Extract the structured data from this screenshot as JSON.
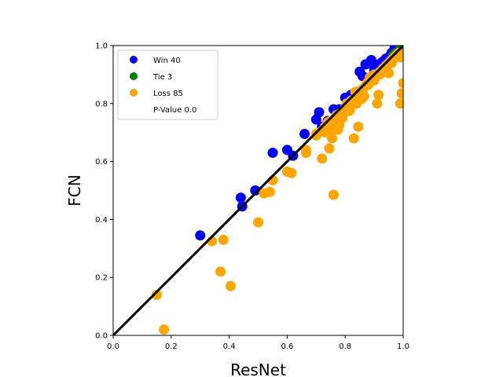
{
  "chart_data": {
    "type": "scatter",
    "xlabel": "ResNet",
    "ylabel": "FCN",
    "xlim": [
      0,
      1
    ],
    "ylim": [
      0,
      1
    ],
    "x_ticks": [
      "0.0",
      "0.2",
      "0.4",
      "0.6",
      "0.8",
      "1.0"
    ],
    "y_ticks": [
      "0.0",
      "0.2",
      "0.4",
      "0.6",
      "0.8",
      "1.0"
    ],
    "grid": false,
    "legend_position": "upper-left",
    "legend": [
      {
        "label": "Win 40",
        "color": "#0000ff"
      },
      {
        "label": "Tie 3",
        "color": "#008000"
      },
      {
        "label": "Loss 85",
        "color": "#ffa500"
      },
      {
        "label": "P-Value 0.0",
        "color": ""
      }
    ],
    "diagonal": {
      "from": [
        0,
        0
      ],
      "to": [
        1,
        1
      ],
      "color": "#000000"
    },
    "series": [
      {
        "name": "Win 40",
        "color": "#0000ff",
        "points": [
          [
            0.3,
            0.345
          ],
          [
            0.44,
            0.475
          ],
          [
            0.445,
            0.445
          ],
          [
            0.49,
            0.5
          ],
          [
            0.55,
            0.63
          ],
          [
            0.6,
            0.64
          ],
          [
            0.62,
            0.62
          ],
          [
            0.66,
            0.695
          ],
          [
            0.7,
            0.745
          ],
          [
            0.71,
            0.77
          ],
          [
            0.72,
            0.72
          ],
          [
            0.74,
            0.74
          ],
          [
            0.76,
            0.78
          ],
          [
            0.78,
            0.78
          ],
          [
            0.8,
            0.82
          ],
          [
            0.82,
            0.83
          ],
          [
            0.84,
            0.84
          ],
          [
            0.85,
            0.91
          ],
          [
            0.86,
            0.895
          ],
          [
            0.87,
            0.935
          ],
          [
            0.88,
            0.885
          ],
          [
            0.89,
            0.95
          ],
          [
            0.9,
            0.92
          ],
          [
            0.92,
            0.93
          ],
          [
            0.93,
            0.945
          ],
          [
            0.94,
            0.955
          ],
          [
            0.95,
            0.96
          ],
          [
            0.96,
            0.975
          ],
          [
            0.97,
            0.99
          ],
          [
            0.98,
            1.0
          ],
          [
            0.985,
            0.985
          ],
          [
            0.99,
            0.995
          ],
          [
            0.9,
            0.905
          ],
          [
            0.915,
            0.935
          ],
          [
            0.925,
            0.94
          ],
          [
            0.945,
            0.94
          ],
          [
            0.955,
            0.965
          ],
          [
            0.965,
            0.97
          ],
          [
            0.975,
            0.985
          ],
          [
            0.995,
            1.0
          ]
        ]
      },
      {
        "name": "Tie 3",
        "color": "#008000",
        "points": [
          [
            0.965,
            0.965
          ],
          [
            0.975,
            0.975
          ],
          [
            0.99,
            0.99
          ]
        ]
      },
      {
        "name": "Loss 85",
        "color": "#ffa500",
        "points": [
          [
            0.15,
            0.14
          ],
          [
            0.175,
            0.02
          ],
          [
            0.34,
            0.325
          ],
          [
            0.37,
            0.22
          ],
          [
            0.38,
            0.33
          ],
          [
            0.405,
            0.17
          ],
          [
            0.5,
            0.39
          ],
          [
            0.52,
            0.49
          ],
          [
            0.54,
            0.495
          ],
          [
            0.55,
            0.535
          ],
          [
            0.6,
            0.565
          ],
          [
            0.615,
            0.56
          ],
          [
            0.665,
            0.63
          ],
          [
            0.665,
            0.64
          ],
          [
            0.7,
            0.695
          ],
          [
            0.72,
            0.61
          ],
          [
            0.73,
            0.72
          ],
          [
            0.74,
            0.735
          ],
          [
            0.745,
            0.645
          ],
          [
            0.75,
            0.7
          ],
          [
            0.755,
            0.68
          ],
          [
            0.76,
            0.485
          ],
          [
            0.765,
            0.73
          ],
          [
            0.77,
            0.76
          ],
          [
            0.775,
            0.71
          ],
          [
            0.78,
            0.725
          ],
          [
            0.79,
            0.75
          ],
          [
            0.8,
            0.785
          ],
          [
            0.805,
            0.8
          ],
          [
            0.815,
            0.775
          ],
          [
            0.82,
            0.81
          ],
          [
            0.83,
            0.68
          ],
          [
            0.835,
            0.84
          ],
          [
            0.845,
            0.72
          ],
          [
            0.85,
            0.83
          ],
          [
            0.855,
            0.815
          ],
          [
            0.86,
            0.85
          ],
          [
            0.865,
            0.825
          ],
          [
            0.87,
            0.86
          ],
          [
            0.875,
            0.87
          ],
          [
            0.88,
            0.875
          ],
          [
            0.885,
            0.89
          ],
          [
            0.89,
            0.88
          ],
          [
            0.895,
            0.885
          ],
          [
            0.9,
            0.9
          ],
          [
            0.905,
            0.895
          ],
          [
            0.91,
            0.8
          ],
          [
            0.915,
            0.83
          ],
          [
            0.92,
            0.91
          ],
          [
            0.925,
            0.905
          ],
          [
            0.93,
            0.92
          ],
          [
            0.935,
            0.915
          ],
          [
            0.94,
            0.93
          ],
          [
            0.945,
            0.935
          ],
          [
            0.95,
            0.905
          ],
          [
            0.955,
            0.945
          ],
          [
            0.96,
            0.95
          ],
          [
            0.965,
            0.955
          ],
          [
            0.97,
            0.96
          ],
          [
            0.975,
            0.965
          ],
          [
            0.98,
            0.97
          ],
          [
            0.985,
            0.975
          ],
          [
            0.99,
            0.8
          ],
          [
            0.995,
            0.835
          ],
          [
            1.0,
            0.87
          ],
          [
            0.73,
            0.7
          ],
          [
            0.74,
            0.715
          ],
          [
            0.75,
            0.74
          ],
          [
            0.76,
            0.745
          ],
          [
            0.77,
            0.735
          ],
          [
            0.8,
            0.77
          ],
          [
            0.81,
            0.795
          ],
          [
            0.82,
            0.79
          ],
          [
            0.84,
            0.8
          ],
          [
            0.86,
            0.84
          ],
          [
            0.88,
            0.865
          ],
          [
            0.9,
            0.88
          ],
          [
            0.92,
            0.9
          ],
          [
            0.94,
            0.92
          ],
          [
            0.96,
            0.94
          ],
          [
            0.98,
            0.96
          ],
          [
            0.7,
            0.69
          ],
          [
            0.72,
            0.705
          ],
          [
            0.78,
            0.765
          ],
          [
            0.99,
            0.96
          ]
        ]
      }
    ]
  }
}
